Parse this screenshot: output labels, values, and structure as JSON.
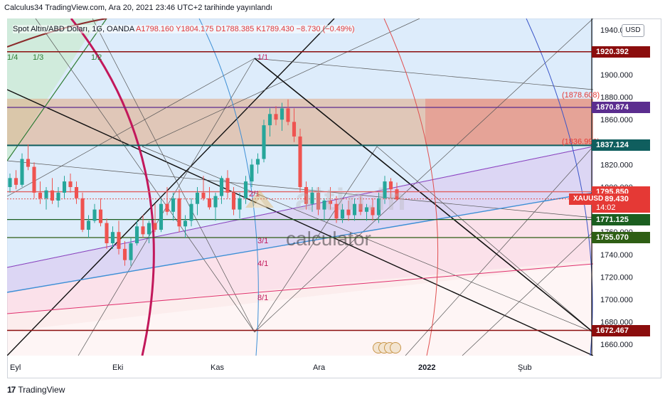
{
  "header": {
    "publish_text": "Calculus34 TradingView.com, Ara 20, 2021 23:46 UTC+2 tarihinde yayınlandı"
  },
  "legend": {
    "symbol_label": "Spot Altın/ABD Doları, 1G, OANDA",
    "ohlc_text": "A1798.160  Y1804.175  D1788.385  K1789.430  −8.730 (−0.49%)"
  },
  "currency_button": "USD",
  "gann_labels": [
    "1/4",
    "1/3",
    "1/2",
    "1/1",
    "2/1",
    "3/1",
    "4/1",
    "8/1"
  ],
  "watermark": {
    "calculator_text": "calculator",
    "altin_text": "altin.in"
  },
  "footer": {
    "brand": "TradingView",
    "logo_mark": "17"
  },
  "colors": {
    "bull": "#26a69a",
    "bear": "#ef5350",
    "tag_red": "#e53935",
    "tag_purple": "#5b2d8f",
    "tag_teal": "#0f5e5e",
    "tag_green": "#1b5e20",
    "tag_darkgreen": "#2e5e14",
    "tag_darkred": "#8b0d0d"
  },
  "chart_data": {
    "type": "candlestick",
    "ylim": [
      1650,
      1950
    ],
    "y_ticks": [
      "1660.000",
      "1680.000",
      "1700.000",
      "1720.000",
      "1740.000",
      "1760.000",
      "1780.000",
      "1800.000",
      "1820.000",
      "1840.000",
      "1860.000",
      "1880.000",
      "1900.000",
      "1920.000",
      "1940.000"
    ],
    "x_labels": [
      "Eyl",
      "Eki",
      "Kas",
      "Ara",
      "2022",
      "Şub"
    ],
    "price_tags": [
      {
        "value": "1920.392",
        "kind": "darkred"
      },
      {
        "value": "1870.874",
        "kind": "purple"
      },
      {
        "value": "1837.124",
        "kind": "teal"
      },
      {
        "value": "1795.850",
        "kind": "red"
      },
      {
        "value": "1789.430",
        "kind": "red",
        "symbol": "XAUUSD",
        "time": "14:02"
      },
      {
        "value": "1771.125",
        "kind": "green"
      },
      {
        "value": "1755.070",
        "kind": "darkgreen"
      },
      {
        "value": "1672.467",
        "kind": "darkred"
      }
    ],
    "annotations": [
      "(1878.608)",
      "(1836.992)"
    ],
    "candles": [
      [
        1800,
        1812,
        1795,
        1808
      ],
      [
        1808,
        1815,
        1798,
        1802
      ],
      [
        1802,
        1830,
        1800,
        1825
      ],
      [
        1825,
        1838,
        1815,
        1818
      ],
      [
        1818,
        1822,
        1790,
        1795
      ],
      [
        1795,
        1805,
        1785,
        1790
      ],
      [
        1790,
        1800,
        1780,
        1797
      ],
      [
        1797,
        1808,
        1785,
        1788
      ],
      [
        1788,
        1800,
        1782,
        1795
      ],
      [
        1795,
        1810,
        1790,
        1805
      ],
      [
        1805,
        1812,
        1795,
        1800
      ],
      [
        1800,
        1805,
        1785,
        1790
      ],
      [
        1790,
        1795,
        1760,
        1762
      ],
      [
        1762,
        1775,
        1755,
        1770
      ],
      [
        1770,
        1785,
        1768,
        1780
      ],
      [
        1780,
        1790,
        1765,
        1768
      ],
      [
        1768,
        1772,
        1745,
        1750
      ],
      [
        1750,
        1765,
        1745,
        1760
      ],
      [
        1760,
        1770,
        1740,
        1745
      ],
      [
        1745,
        1752,
        1730,
        1735
      ],
      [
        1735,
        1755,
        1730,
        1750
      ],
      [
        1750,
        1770,
        1748,
        1765
      ],
      [
        1765,
        1775,
        1755,
        1758
      ],
      [
        1758,
        1770,
        1750,
        1768
      ],
      [
        1768,
        1785,
        1760,
        1762
      ],
      [
        1762,
        1790,
        1760,
        1785
      ],
      [
        1785,
        1800,
        1775,
        1778
      ],
      [
        1778,
        1795,
        1770,
        1790
      ],
      [
        1790,
        1798,
        1760,
        1765
      ],
      [
        1765,
        1775,
        1755,
        1770
      ],
      [
        1770,
        1790,
        1765,
        1785
      ],
      [
        1785,
        1800,
        1775,
        1795
      ],
      [
        1795,
        1810,
        1788,
        1790
      ],
      [
        1790,
        1800,
        1780,
        1782
      ],
      [
        1782,
        1795,
        1770,
        1792
      ],
      [
        1792,
        1810,
        1785,
        1808
      ],
      [
        1808,
        1815,
        1790,
        1795
      ],
      [
        1795,
        1800,
        1775,
        1780
      ],
      [
        1780,
        1795,
        1772,
        1790
      ],
      [
        1790,
        1810,
        1785,
        1805
      ],
      [
        1805,
        1825,
        1800,
        1820
      ],
      [
        1820,
        1830,
        1812,
        1825
      ],
      [
        1825,
        1860,
        1822,
        1855
      ],
      [
        1855,
        1870,
        1845,
        1865
      ],
      [
        1865,
        1872,
        1855,
        1860
      ],
      [
        1860,
        1875,
        1850,
        1870
      ],
      [
        1870,
        1878,
        1855,
        1858
      ],
      [
        1858,
        1870,
        1840,
        1845
      ],
      [
        1845,
        1852,
        1795,
        1800
      ],
      [
        1800,
        1805,
        1780,
        1785
      ],
      [
        1785,
        1800,
        1778,
        1795
      ],
      [
        1795,
        1800,
        1775,
        1780
      ],
      [
        1780,
        1790,
        1770,
        1788
      ],
      [
        1788,
        1800,
        1780,
        1785
      ],
      [
        1785,
        1792,
        1768,
        1772
      ],
      [
        1772,
        1785,
        1768,
        1780
      ],
      [
        1780,
        1788,
        1770,
        1775
      ],
      [
        1775,
        1790,
        1770,
        1785
      ],
      [
        1785,
        1792,
        1775,
        1778
      ],
      [
        1778,
        1785,
        1770,
        1782
      ],
      [
        1782,
        1790,
        1770,
        1775
      ],
      [
        1775,
        1795,
        1768,
        1790
      ],
      [
        1790,
        1810,
        1785,
        1805
      ],
      [
        1805,
        1808,
        1790,
        1798
      ],
      [
        1798,
        1804,
        1788,
        1789
      ]
    ]
  }
}
